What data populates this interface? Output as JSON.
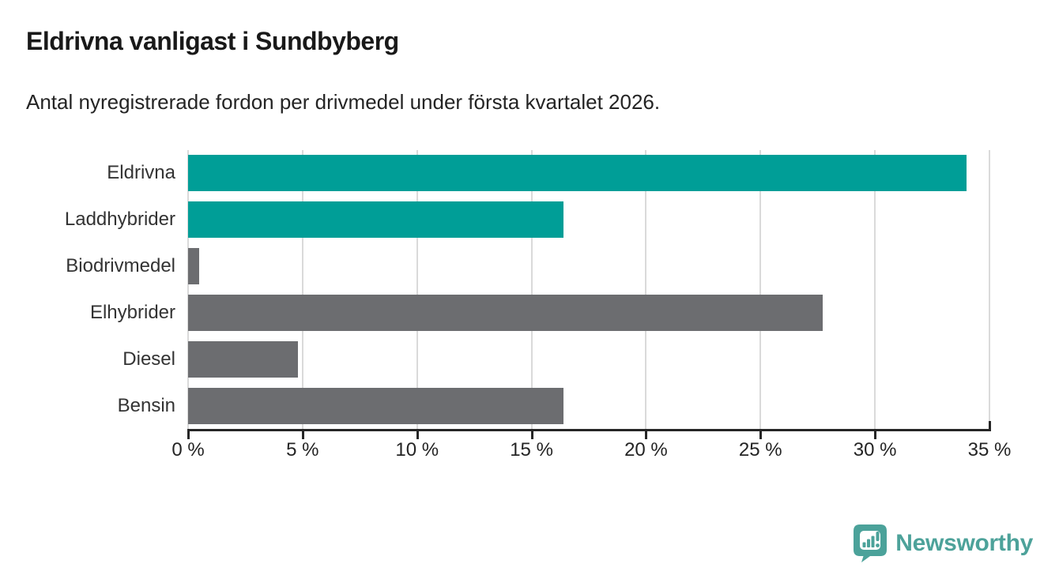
{
  "header": {
    "title": "Eldrivna vanligast i Sundbyberg",
    "subtitle": "Antal nyregistrerade fordon per drivmedel under första kvartalet 2026."
  },
  "chart_data": {
    "type": "bar",
    "orientation": "horizontal",
    "title": "Eldrivna vanligast i Sundbyberg",
    "subtitle": "Antal nyregistrerade fordon per drivmedel under första kvartalet 2026.",
    "categories": [
      "Eldrivna",
      "Laddhybrider",
      "Biodrivmedel",
      "Elhybrider",
      "Diesel",
      "Bensin"
    ],
    "values": [
      34.0,
      16.4,
      0.5,
      27.7,
      4.8,
      16.4
    ],
    "unit": "%",
    "xlabel": "",
    "ylabel": "",
    "xlim": [
      0,
      35
    ],
    "ticks": [
      0,
      5,
      10,
      15,
      20,
      25,
      30,
      35
    ],
    "tick_labels": [
      "0 %",
      "5 %",
      "10 %",
      "15 %",
      "20 %",
      "25 %",
      "30 %",
      "35 %"
    ],
    "grid": true,
    "legend": false,
    "bar_colors": [
      "teal",
      "teal",
      "gray",
      "gray",
      "gray",
      "gray"
    ],
    "palette": {
      "teal": "#009e97",
      "gray": "#6c6d70"
    },
    "gridline_color": "#dadada",
    "axis_color": "#262626"
  },
  "footer": {
    "logo_text": "Newsworthy",
    "logo_color": "#4da29a",
    "logo_icon": "newsworthy-pin-icon"
  }
}
